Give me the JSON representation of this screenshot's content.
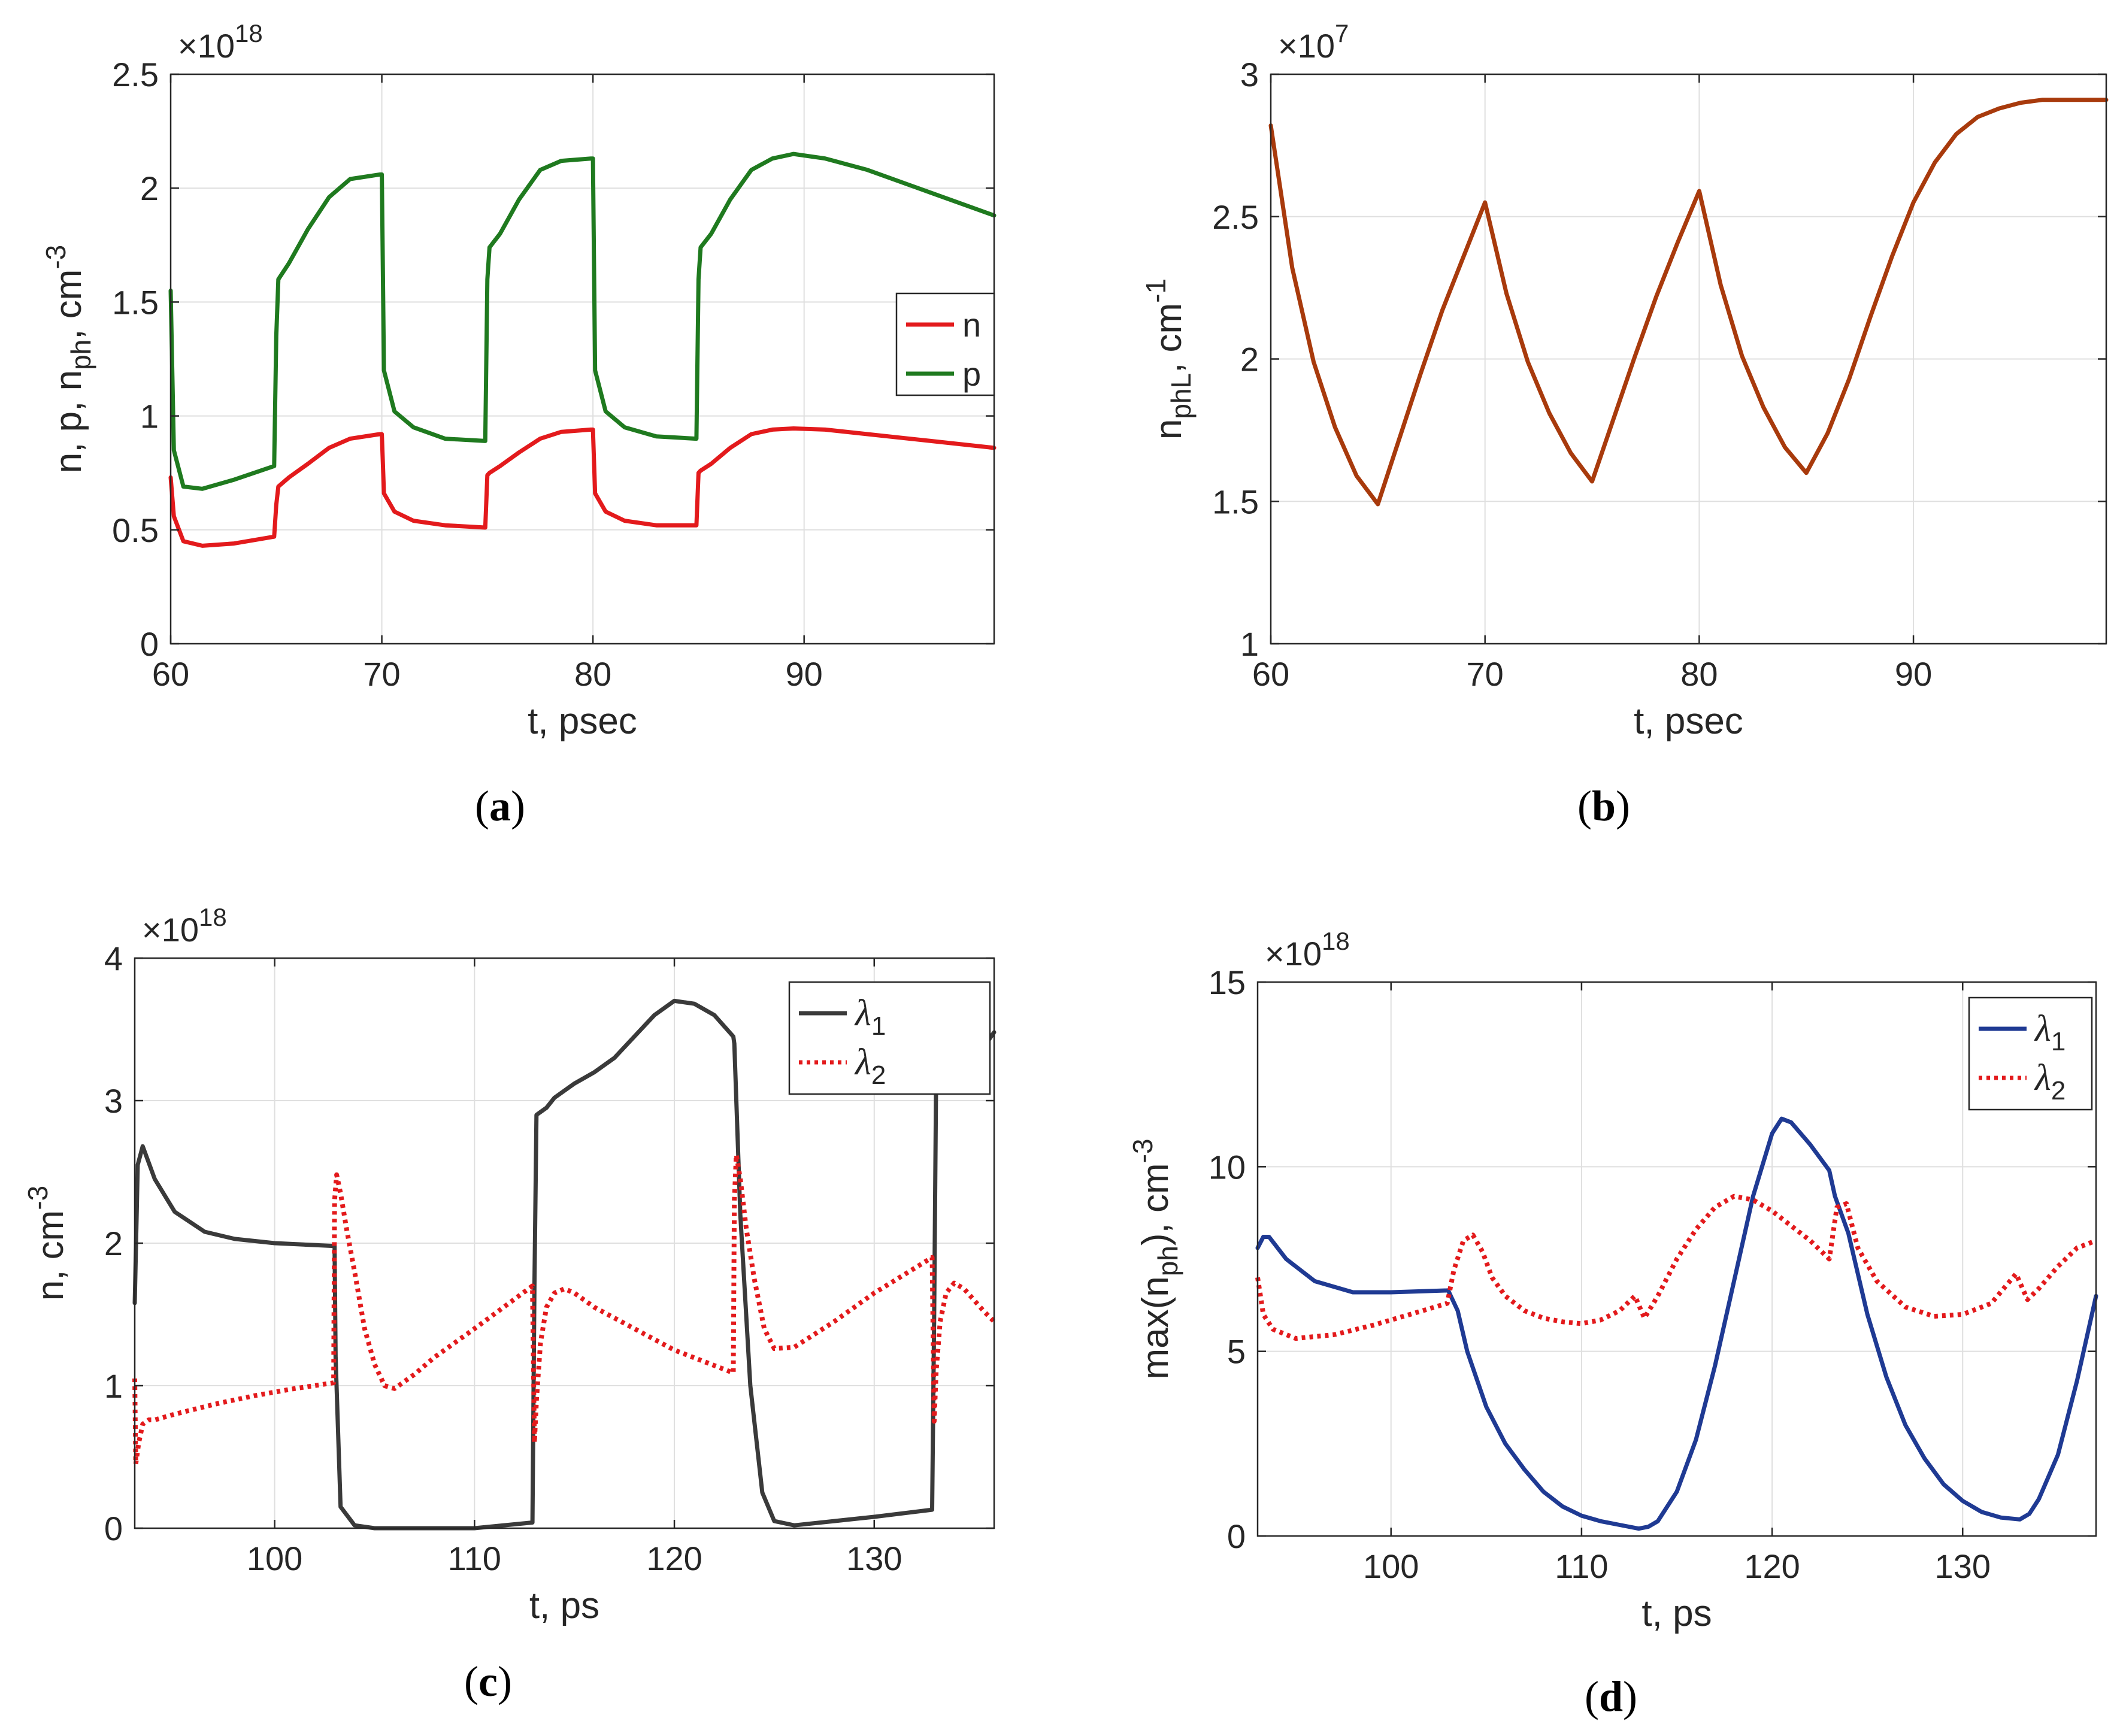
{
  "colors": {
    "n_red": "#e31a1c",
    "p_green": "#1f7a1f",
    "nphl_brown": "#a83a0c",
    "lambda1_black": "#3a3a3a",
    "lambda2_red": "#e31a1c",
    "lambda1_blue": "#1f3a93"
  },
  "chart_data": [
    {
      "id": "a",
      "type": "line",
      "caption": "(a)",
      "caption_letter": "a",
      "xlabel": "t, psec",
      "ylabel": "n, p, n_ph, cm^-3",
      "ylabel_parts": {
        "pre": "n, p, n",
        "sub": "ph",
        "mid": ", cm",
        "sup": "-3"
      },
      "exponent": {
        "prefix": "×10",
        "power": "18"
      },
      "xlim": [
        60,
        99
      ],
      "ylim": [
        0,
        2.5
      ],
      "xticks": [
        60,
        70,
        80,
        90
      ],
      "xtick_labels": [
        "60",
        "70",
        "80",
        "90"
      ],
      "yticks": [
        0,
        0.5,
        1,
        1.5,
        2,
        2.5
      ],
      "ytick_labels": [
        "0",
        "0.5",
        "1",
        "1.5",
        "2",
        "2.5"
      ],
      "legend": {
        "location": "right",
        "entries": [
          "n",
          "p"
        ]
      },
      "series": [
        {
          "name": "n",
          "style": "solid",
          "x": [
            60,
            60.15,
            60.6,
            61.5,
            63,
            64.9,
            65,
            65.1,
            65.6,
            66.5,
            67.5,
            68.5,
            69.9,
            70,
            70.1,
            70.6,
            71.5,
            73,
            74.9,
            75,
            75.1,
            75.6,
            76.5,
            77.5,
            78.5,
            79.9,
            80,
            80.1,
            80.6,
            81.5,
            83,
            84.9,
            85,
            85.1,
            85.6,
            86.5,
            87.5,
            88.5,
            89.5,
            91,
            93,
            96,
            99
          ],
          "values": [
            0.73,
            0.56,
            0.45,
            0.43,
            0.44,
            0.47,
            0.61,
            0.69,
            0.73,
            0.79,
            0.86,
            0.9,
            0.92,
            0.92,
            0.66,
            0.58,
            0.54,
            0.52,
            0.51,
            0.74,
            0.75,
            0.78,
            0.84,
            0.9,
            0.93,
            0.94,
            0.94,
            0.66,
            0.58,
            0.54,
            0.52,
            0.52,
            0.75,
            0.76,
            0.79,
            0.86,
            0.92,
            0.94,
            0.945,
            0.94,
            0.92,
            0.89,
            0.86
          ]
        },
        {
          "name": "p",
          "style": "solid",
          "x": [
            60,
            60.15,
            60.6,
            61.5,
            63,
            64.9,
            65,
            65.1,
            65.6,
            66.5,
            67.5,
            68.5,
            69.9,
            70,
            70.1,
            70.6,
            71.5,
            73,
            74.9,
            75,
            75.1,
            75.6,
            76.5,
            77.5,
            78.5,
            79.9,
            80,
            80.1,
            80.6,
            81.5,
            83,
            84.9,
            85,
            85.1,
            85.6,
            86.5,
            87.5,
            88.5,
            89.5,
            91,
            93,
            96,
            99
          ],
          "values": [
            1.55,
            0.85,
            0.69,
            0.68,
            0.72,
            0.78,
            1.35,
            1.6,
            1.67,
            1.82,
            1.96,
            2.04,
            2.06,
            2.06,
            1.2,
            1.02,
            0.95,
            0.9,
            0.89,
            1.6,
            1.74,
            1.8,
            1.95,
            2.08,
            2.12,
            2.13,
            2.13,
            1.2,
            1.02,
            0.95,
            0.91,
            0.9,
            1.6,
            1.74,
            1.8,
            1.95,
            2.08,
            2.13,
            2.15,
            2.13,
            2.08,
            1.98,
            1.88
          ]
        }
      ]
    },
    {
      "id": "b",
      "type": "line",
      "caption": "(b)",
      "caption_letter": "b",
      "xlabel": "t, psec",
      "ylabel": "n_phL, cm^-1",
      "ylabel_parts": {
        "pre": "n",
        "sub": "phL",
        "mid": ", cm",
        "sup": "-1"
      },
      "exponent": {
        "prefix": "×10",
        "power": "7"
      },
      "xlim": [
        60,
        99
      ],
      "ylim": [
        1,
        3
      ],
      "xticks": [
        60,
        70,
        80,
        90
      ],
      "xtick_labels": [
        "60",
        "70",
        "80",
        "90"
      ],
      "yticks": [
        1,
        1.5,
        2,
        2.5,
        3
      ],
      "ytick_labels": [
        "1",
        "1.5",
        "2",
        "2.5",
        "3"
      ],
      "legend": null,
      "series": [
        {
          "name": "n_phL",
          "style": "solid",
          "x": [
            60,
            61,
            62,
            63,
            64,
            65,
            66,
            67,
            68,
            69,
            70,
            71,
            72,
            73,
            74,
            75,
            76,
            77,
            78,
            79,
            80,
            81,
            82,
            83,
            84,
            85,
            86,
            87,
            88,
            89,
            90,
            91,
            92,
            93,
            94,
            95,
            96,
            97,
            98,
            99
          ],
          "values": [
            2.82,
            2.32,
            1.99,
            1.76,
            1.59,
            1.49,
            1.72,
            1.95,
            2.17,
            2.36,
            2.55,
            2.23,
            1.99,
            1.81,
            1.67,
            1.57,
            1.79,
            2.01,
            2.22,
            2.41,
            2.59,
            2.26,
            2.01,
            1.83,
            1.69,
            1.6,
            1.74,
            1.93,
            2.15,
            2.36,
            2.55,
            2.69,
            2.79,
            2.85,
            2.88,
            2.9,
            2.91,
            2.91,
            2.91,
            2.91
          ]
        }
      ]
    },
    {
      "id": "c",
      "type": "line",
      "caption": "(c)",
      "caption_letter": "c",
      "xlabel": "t, ps",
      "ylabel": "n, cm^-3",
      "ylabel_parts": {
        "pre": "n, cm",
        "sub": "",
        "mid": "",
        "sup": "-3"
      },
      "exponent": {
        "prefix": "×10",
        "power": "18"
      },
      "xlim": [
        93,
        136
      ],
      "ylim": [
        0,
        4
      ],
      "xticks": [
        100,
        110,
        120,
        130
      ],
      "xtick_labels": [
        "100",
        "110",
        "120",
        "130"
      ],
      "yticks": [
        0,
        1,
        2,
        3,
        4
      ],
      "ytick_labels": [
        "0",
        "1",
        "2",
        "3",
        "4"
      ],
      "legend": {
        "location": "top-right",
        "entries": [
          "λ1",
          "λ2"
        ],
        "symbol": "λ",
        "subs": [
          "1",
          "2"
        ]
      },
      "series": [
        {
          "name": "λ1",
          "style": "solid",
          "x": [
            93,
            93.15,
            93.4,
            94,
            95,
            96.5,
            98,
            100,
            103,
            103.05,
            103.3,
            104,
            105,
            108,
            110,
            112.9,
            113,
            113.1,
            113.3,
            113.6,
            114,
            115,
            116,
            117,
            118,
            119,
            120,
            121,
            122,
            122.95,
            123,
            123.3,
            123.8,
            124.4,
            125,
            126,
            128,
            130,
            132.9,
            133,
            133.1,
            133.3,
            133.6,
            134.5,
            135.5,
            136
          ],
          "values": [
            1.58,
            2.55,
            2.68,
            2.45,
            2.22,
            2.08,
            2.03,
            2.0,
            1.98,
            1.2,
            0.15,
            0.02,
            0.0,
            0.0,
            0.0,
            0.04,
            1.7,
            2.9,
            2.92,
            2.95,
            3.02,
            3.12,
            3.2,
            3.3,
            3.45,
            3.6,
            3.7,
            3.68,
            3.6,
            3.45,
            3.4,
            2.2,
            1.0,
            0.25,
            0.05,
            0.02,
            0.05,
            0.08,
            0.13,
            1.5,
            3.2,
            3.12,
            3.2,
            3.26,
            3.38,
            3.48
          ]
        },
        {
          "name": "λ2",
          "style": "dotted",
          "x": [
            93,
            93.05,
            93.2,
            93.4,
            93.7,
            94,
            95,
            97,
            99,
            101,
            102.95,
            103,
            103.1,
            103.3,
            103.6,
            104,
            104.5,
            105,
            105.5,
            106,
            107,
            108,
            110,
            112.9,
            113,
            113.1,
            113.3,
            113.6,
            114,
            114.5,
            115,
            116,
            118,
            120,
            122.95,
            123,
            123.1,
            123.3,
            123.6,
            124,
            124.5,
            125,
            126,
            128,
            130,
            132.9,
            133,
            133.1,
            133.3,
            133.6,
            134,
            134.5,
            135,
            135.5,
            136
          ],
          "values": [
            1.05,
            0.45,
            0.6,
            0.73,
            0.76,
            0.76,
            0.8,
            0.87,
            0.93,
            0.98,
            1.02,
            2.3,
            2.48,
            2.35,
            2.1,
            1.8,
            1.4,
            1.15,
            1.0,
            0.98,
            1.08,
            1.2,
            1.4,
            1.7,
            0.6,
            0.9,
            1.3,
            1.55,
            1.65,
            1.68,
            1.65,
            1.55,
            1.4,
            1.25,
            1.09,
            2.3,
            2.62,
            2.45,
            2.1,
            1.75,
            1.4,
            1.26,
            1.27,
            1.45,
            1.65,
            1.9,
            0.75,
            1.1,
            1.45,
            1.65,
            1.72,
            1.68,
            1.6,
            1.52,
            1.45
          ]
        }
      ]
    },
    {
      "id": "d",
      "type": "line",
      "caption": "(d)",
      "caption_letter": "d",
      "xlabel": "t, ps",
      "ylabel": "max(n_ph), cm^-3",
      "ylabel_parts": {
        "pre": "max(n",
        "sub": "ph",
        "mid": "), cm",
        "sup": "-3"
      },
      "exponent": {
        "prefix": "×10",
        "power": "18"
      },
      "xlim": [
        93,
        137
      ],
      "ylim": [
        0,
        15
      ],
      "xticks": [
        100,
        110,
        120,
        130
      ],
      "xtick_labels": [
        "100",
        "110",
        "120",
        "130"
      ],
      "yticks": [
        0,
        5,
        10,
        15
      ],
      "ytick_labels": [
        "0",
        "5",
        "10",
        "15"
      ],
      "legend": {
        "location": "top-right",
        "entries": [
          "λ1",
          "λ2"
        ],
        "symbol": "λ",
        "subs": [
          "1",
          "2"
        ]
      },
      "series": [
        {
          "name": "λ1",
          "style": "solid",
          "x": [
            93,
            93.3,
            93.6,
            94.5,
            96,
            98,
            100,
            103,
            103.5,
            104,
            105,
            106,
            107,
            108,
            109,
            110,
            111,
            112,
            113,
            113.5,
            114,
            115,
            116,
            117,
            118,
            119,
            120,
            120.5,
            121,
            122,
            123,
            123.3,
            124,
            125,
            126,
            127,
            128,
            129,
            130,
            131,
            132,
            133,
            133.5,
            134,
            135,
            136,
            137
          ],
          "values": [
            7.8,
            8.1,
            8.1,
            7.5,
            6.9,
            6.6,
            6.6,
            6.65,
            6.1,
            5.0,
            3.5,
            2.5,
            1.8,
            1.2,
            0.8,
            0.55,
            0.4,
            0.3,
            0.2,
            0.25,
            0.4,
            1.2,
            2.6,
            4.6,
            6.9,
            9.2,
            10.9,
            11.3,
            11.2,
            10.6,
            9.9,
            9.2,
            8.2,
            6.0,
            4.3,
            3.0,
            2.1,
            1.4,
            0.95,
            0.65,
            0.5,
            0.45,
            0.6,
            1.0,
            2.2,
            4.2,
            6.5
          ]
        },
        {
          "name": "λ2",
          "style": "dotted",
          "x": [
            93,
            93.3,
            93.8,
            95,
            97,
            99,
            101,
            102.95,
            103.3,
            103.8,
            104.3,
            104.8,
            105.3,
            106,
            107,
            108,
            109,
            110,
            111,
            112,
            112.8,
            113.3,
            114,
            115,
            116,
            117,
            118,
            119,
            120,
            121,
            122,
            123,
            123.4,
            123.9,
            124.5,
            125.5,
            127,
            128.5,
            130,
            131.5,
            132.8,
            133.4,
            134,
            135,
            136,
            137
          ],
          "values": [
            7.0,
            6.0,
            5.6,
            5.35,
            5.45,
            5.7,
            6.0,
            6.3,
            7.2,
            8.0,
            8.15,
            7.7,
            7.0,
            6.5,
            6.1,
            5.9,
            5.8,
            5.75,
            5.85,
            6.1,
            6.5,
            5.9,
            6.5,
            7.5,
            8.3,
            8.9,
            9.2,
            9.1,
            8.8,
            8.4,
            8.0,
            7.5,
            8.9,
            9.0,
            7.8,
            6.9,
            6.2,
            5.95,
            6.0,
            6.3,
            7.1,
            6.4,
            6.7,
            7.3,
            7.8,
            8.0
          ]
        }
      ]
    }
  ]
}
